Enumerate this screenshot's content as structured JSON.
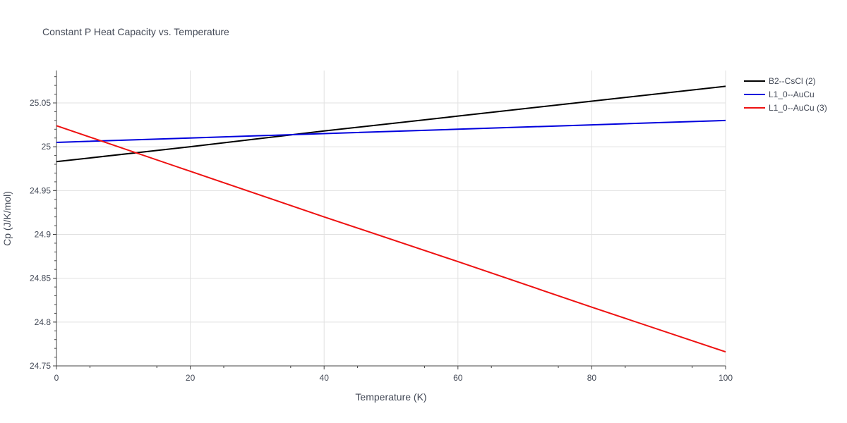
{
  "chart_data": {
    "type": "line",
    "title": "Constant P Heat Capacity vs. Temperature",
    "xlabel": "Temperature (K)",
    "ylabel": "Cp (J/K/mol)",
    "xlim": [
      0,
      100
    ],
    "ylim": [
      24.75,
      25.087
    ],
    "x_ticks": [
      0,
      20,
      40,
      60,
      80,
      100
    ],
    "x_tick_labels": [
      "0",
      "20",
      "40",
      "60",
      "80",
      "100"
    ],
    "y_ticks": [
      24.75,
      24.8,
      24.85,
      24.9,
      24.95,
      25.0,
      25.05
    ],
    "y_tick_labels": [
      "24.75",
      "24.8",
      "24.85",
      "24.9",
      "24.95",
      "25",
      "25.05"
    ],
    "grid": true,
    "legend_position": "top-right",
    "series": [
      {
        "name": "B2--CsCl (2)",
        "color": "#000000",
        "x": [
          0,
          20,
          40,
          60,
          80,
          100
        ],
        "y": [
          24.983,
          25.0,
          25.018,
          25.035,
          25.052,
          25.069
        ]
      },
      {
        "name": "L1_0--AuCu",
        "color": "#0000dd",
        "x": [
          0,
          20,
          40,
          60,
          80,
          100
        ],
        "y": [
          25.005,
          25.01,
          25.015,
          25.02,
          25.025,
          25.03
        ]
      },
      {
        "name": "L1_0--AuCu (3)",
        "color": "#ee1111",
        "x": [
          0,
          20,
          40,
          60,
          80,
          100
        ],
        "y": [
          25.024,
          24.972,
          24.92,
          24.869,
          24.817,
          24.766
        ]
      }
    ]
  }
}
